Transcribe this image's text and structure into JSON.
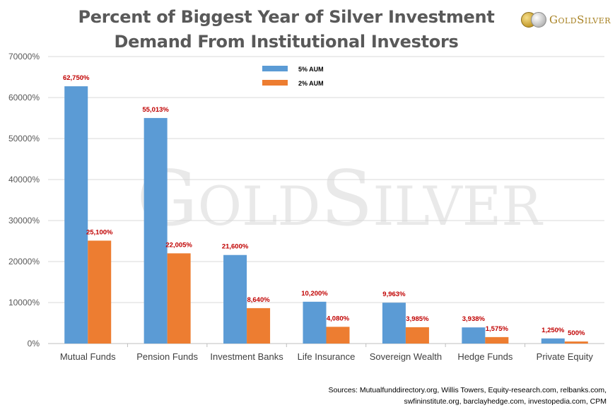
{
  "header": {
    "title_line1": "Percent of Biggest Year of Silver Investment",
    "title_line2": "Demand From Institutional Investors"
  },
  "logo": {
    "text": "GoldSilver",
    "watermark": "GoldSilver"
  },
  "sources": {
    "line1": "Sources: Mutualfunddirectory.org, Willis Towers, Equity-research.com, relbanks.com,",
    "line2": "swfininstitute.org, barclayhedge.com, investopedia.com, CPM"
  },
  "chart_data": {
    "type": "bar",
    "categories": [
      "Mutual Funds",
      "Pension Funds",
      "Investment Banks",
      "Life Insurance",
      "Sovereign Wealth",
      "Hedge Funds",
      "Private Equity"
    ],
    "series": [
      {
        "name": "5% AUM",
        "color": "#5b9bd5",
        "values": [
          62750,
          55013,
          21600,
          10200,
          9963,
          3938,
          1250
        ],
        "labels": [
          "62,750%",
          "55,013%",
          "21,600%",
          "10,200%",
          "9,963%",
          "3,938%",
          "1,250%"
        ]
      },
      {
        "name": "2% AUM",
        "color": "#ed7d31",
        "values": [
          25100,
          22005,
          8640,
          4080,
          3985,
          1575,
          500
        ],
        "labels": [
          "25,100%",
          "22,005%",
          "8,640%",
          "4,080%",
          "3,985%",
          "1,575%",
          "500%"
        ]
      }
    ],
    "ylim": [
      0,
      70000
    ],
    "yticks": [
      0,
      10000,
      20000,
      30000,
      40000,
      50000,
      60000,
      70000
    ],
    "ytick_labels": [
      "0%",
      "10000%",
      "20000%",
      "30000%",
      "40000%",
      "50000%",
      "60000%",
      "70000%"
    ],
    "grid": true,
    "legend": "top-center",
    "data_label_color": "#c00000"
  }
}
